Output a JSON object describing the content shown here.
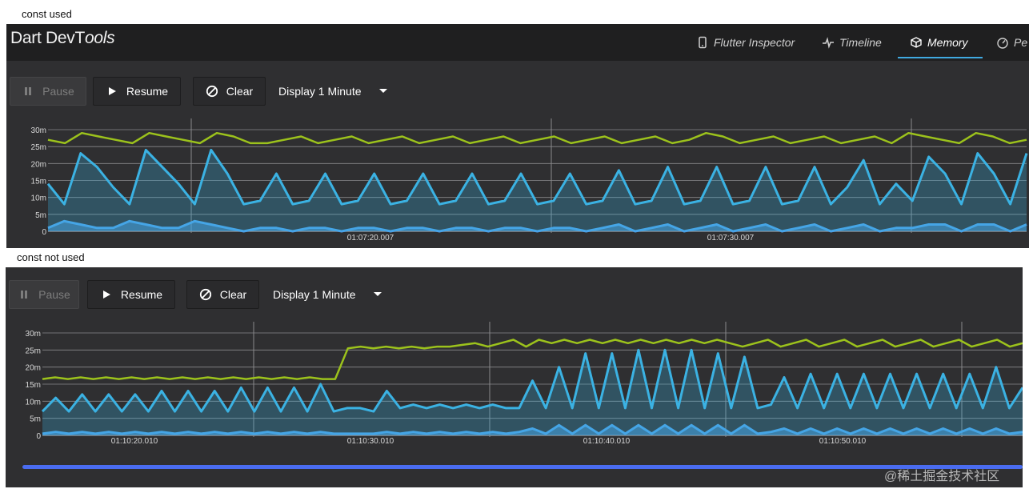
{
  "captions": {
    "top": "const used",
    "bottom": "const not used"
  },
  "app": {
    "title_plain": "Dart DevT",
    "title_italic": "ools",
    "tabs": [
      {
        "label": "Flutter Inspector",
        "icon": "phone-icon",
        "active": false
      },
      {
        "label": "Timeline",
        "icon": "pulse-icon",
        "active": false
      },
      {
        "label": "Memory",
        "icon": "box-icon",
        "active": true
      },
      {
        "label": "Pe",
        "icon": "gauge-icon",
        "active": false
      }
    ]
  },
  "toolbar": {
    "pause_label": "Pause",
    "resume_label": "Resume",
    "clear_label": "Clear",
    "display_label": "Display 1 Minute"
  },
  "colors": {
    "capacity": "#9cc21c",
    "used": "#3bb2e3",
    "external": "#4aa0e8",
    "grid": "#8a8a8c",
    "scrollbar": "#4a6cf0"
  },
  "chart_data": [
    {
      "type": "area",
      "y_ticks": [
        "30m",
        "25m",
        "20m",
        "15m",
        "10m",
        "5m",
        "0"
      ],
      "ylim": [
        0,
        30
      ],
      "x_ticks": [
        "01:07:20.007",
        "01:07:30.007"
      ],
      "series": [
        {
          "values": [
            27,
            26,
            29,
            28,
            27,
            26,
            29,
            28,
            27,
            26,
            29,
            28,
            26,
            26,
            27,
            28,
            26,
            27,
            28,
            26,
            27,
            28,
            26,
            27,
            28,
            26,
            27,
            28,
            26,
            27,
            28,
            26,
            27,
            28,
            26,
            27,
            28,
            26,
            27,
            29,
            28,
            26,
            27,
            28,
            26,
            27,
            28,
            26,
            27,
            28,
            26,
            29,
            28,
            27,
            26,
            29,
            28,
            26,
            27
          ]
        },
        {
          "values": [
            14,
            8,
            23,
            19,
            13,
            8,
            24,
            19,
            14,
            8,
            24,
            17,
            8,
            9,
            17,
            8,
            9,
            17,
            8,
            9,
            17,
            8,
            9,
            17,
            8,
            9,
            17,
            8,
            9,
            17,
            8,
            9,
            17,
            8,
            9,
            18,
            8,
            9,
            19,
            8,
            9,
            19,
            8,
            9,
            19,
            8,
            9,
            19,
            8,
            13,
            21,
            8,
            14,
            9,
            22,
            17,
            8,
            23,
            17,
            8,
            23
          ]
        },
        {
          "values": [
            1,
            3,
            2,
            1,
            1,
            3,
            2,
            1,
            1,
            3,
            2,
            1,
            0,
            1,
            1,
            0,
            1,
            1,
            0,
            1,
            1,
            0,
            1,
            1,
            0,
            1,
            1,
            0,
            1,
            1,
            0,
            1,
            1,
            0,
            1,
            2,
            0,
            1,
            2,
            0,
            1,
            2,
            0,
            1,
            2,
            0,
            1,
            2,
            0,
            1,
            2,
            0,
            1,
            1,
            2,
            2,
            0,
            2,
            2,
            0,
            2
          ]
        }
      ]
    },
    {
      "type": "area",
      "y_ticks": [
        "30m",
        "25m",
        "20m",
        "15m",
        "10m",
        "5m",
        "0"
      ],
      "ylim": [
        0,
        30
      ],
      "x_ticks": [
        "01:10:20.010",
        "01:10:30.010",
        "01:10:40.010",
        "01:10:50.010"
      ],
      "series": [
        {
          "values": [
            16.5,
            17,
            16.5,
            17,
            16.5,
            17,
            16.5,
            17,
            16.5,
            17,
            16.5,
            17,
            16.5,
            17,
            16.5,
            17,
            16.5,
            17,
            16.5,
            17,
            16.5,
            17,
            16.5,
            16.5,
            25.5,
            26,
            25.5,
            26,
            25.5,
            26,
            25.5,
            26,
            26,
            26.5,
            27,
            26,
            27,
            28,
            26,
            28,
            27,
            28,
            27,
            28,
            27,
            28,
            27,
            28,
            27,
            28,
            27,
            28,
            27,
            28,
            27,
            26,
            27,
            28,
            26,
            27,
            28,
            26,
            27,
            28,
            26,
            27,
            28,
            26,
            27,
            28,
            26,
            27,
            28,
            26,
            27,
            28,
            26,
            27
          ]
        },
        {
          "values": [
            7,
            11,
            7,
            12,
            7,
            12,
            7,
            12,
            7,
            13,
            7,
            13,
            7,
            13,
            7,
            14,
            7,
            14,
            7,
            14,
            7,
            15,
            7,
            8,
            8,
            7,
            13,
            8,
            9,
            8,
            9,
            8,
            9,
            8,
            9,
            8,
            8,
            16,
            8,
            20,
            8,
            24,
            8,
            24,
            8,
            25,
            8,
            25,
            8,
            25,
            8,
            24,
            8,
            23,
            8,
            9,
            17,
            8,
            18,
            8,
            18,
            8,
            18,
            8,
            18,
            8,
            18,
            8,
            18,
            8,
            18,
            8,
            20,
            8,
            14
          ]
        },
        {
          "values": [
            0.5,
            1,
            0.5,
            1,
            0.5,
            1,
            0.5,
            1,
            0.5,
            1,
            0.5,
            1,
            0.5,
            1,
            0.5,
            1,
            0.5,
            1,
            0.5,
            1,
            0.5,
            1,
            0.5,
            0.5,
            0.5,
            0.5,
            1,
            0.5,
            1,
            0.5,
            1,
            0.5,
            1,
            0.5,
            1,
            0.5,
            1,
            2,
            0.5,
            3,
            0.5,
            3,
            0.5,
            3,
            0.5,
            3,
            0.5,
            3,
            0.5,
            3,
            0.5,
            3,
            0.5,
            3,
            0.5,
            1,
            2,
            0.5,
            2,
            0.5,
            2,
            0.5,
            2,
            0.5,
            2,
            0.5,
            2,
            0.5,
            2,
            0.5,
            2,
            0.5,
            2,
            0.5,
            1
          ]
        }
      ]
    }
  ],
  "watermark": "@稀土掘金技术社区"
}
